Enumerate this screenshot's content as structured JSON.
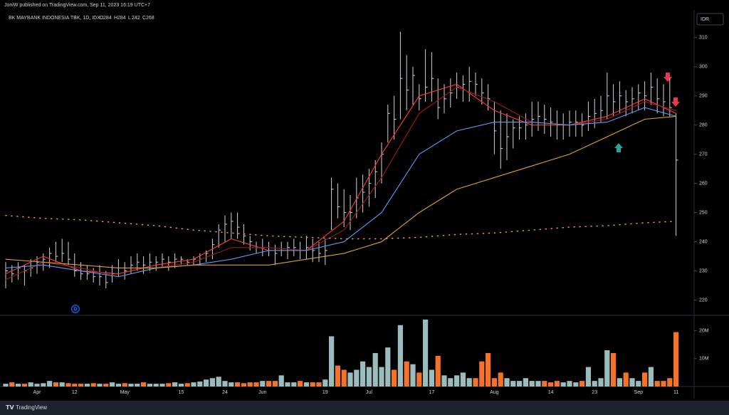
{
  "chart_data": {
    "type": "ohlc",
    "header": "JoniW published on TradingView.com, Sep 11, 2023 16:19 UTC+7",
    "title": "BK MAYBANK INDONESIA TBK, 1D, IDX",
    "ohlc_legend": [
      {
        "label": "O",
        "value": 284
      },
      {
        "label": "H",
        "value": 284
      },
      {
        "label": "L",
        "value": 242
      },
      {
        "label": "C",
        "value": 268
      }
    ],
    "currency": "IDR",
    "footer": "TradingView",
    "marker": "D",
    "categories": [
      null,
      null,
      null,
      null,
      null,
      "Apr",
      null,
      null,
      null,
      null,
      null,
      "12",
      null,
      null,
      null,
      null,
      null,
      null,
      null,
      "May",
      null,
      null,
      null,
      null,
      null,
      null,
      null,
      null,
      "15",
      null,
      null,
      null,
      null,
      null,
      null,
      "24",
      null,
      null,
      null,
      null,
      null,
      "Jun",
      null,
      null,
      null,
      null,
      null,
      null,
      null,
      null,
      null,
      "19",
      null,
      null,
      null,
      null,
      null,
      null,
      "Jul",
      null,
      null,
      null,
      null,
      null,
      null,
      null,
      null,
      null,
      "17",
      null,
      null,
      null,
      null,
      null,
      null,
      null,
      null,
      null,
      "Aug",
      null,
      null,
      null,
      null,
      null,
      null,
      null,
      null,
      "14",
      null,
      null,
      null,
      null,
      null,
      null,
      "23",
      null,
      null,
      null,
      null,
      null,
      null,
      "Sep",
      null,
      null,
      null,
      null,
      null,
      "11"
    ],
    "high": [
      233,
      232,
      233,
      232,
      234,
      235,
      236,
      238,
      240,
      241,
      240,
      236,
      233,
      232,
      231,
      232,
      230,
      232,
      234,
      233,
      235,
      236,
      235,
      236,
      235,
      236,
      235,
      236,
      235,
      234,
      235,
      236,
      237,
      241,
      246,
      249,
      250,
      250,
      246,
      242,
      240,
      241,
      240,
      239,
      240,
      240,
      241,
      240,
      242,
      241,
      240,
      241,
      262,
      260,
      258,
      256,
      262,
      263,
      265,
      268,
      274,
      287,
      290,
      312,
      304,
      300,
      294,
      306,
      305,
      296,
      294,
      296,
      298,
      297,
      300,
      298,
      296,
      294,
      288,
      285,
      284,
      282,
      283,
      284,
      288,
      288,
      287,
      286,
      285,
      284,
      285,
      285,
      284,
      288,
      289,
      290,
      298,
      294,
      295,
      292,
      293,
      294,
      295,
      298,
      296,
      294,
      296,
      284
    ],
    "low": [
      224,
      226,
      227,
      225,
      228,
      229,
      230,
      231,
      233,
      233,
      232,
      228,
      227,
      227,
      226,
      225,
      224,
      226,
      228,
      227,
      229,
      230,
      229,
      230,
      230,
      231,
      230,
      231,
      232,
      232,
      232,
      232,
      233,
      234,
      238,
      240,
      241,
      241,
      239,
      237,
      236,
      235,
      235,
      232,
      235,
      234,
      235,
      234,
      234,
      233,
      233,
      232,
      244,
      248,
      245,
      244,
      248,
      250,
      252,
      255,
      260,
      274,
      275,
      282,
      285,
      287,
      285,
      288,
      288,
      282,
      284,
      286,
      289,
      288,
      288,
      290,
      287,
      285,
      270,
      265,
      268,
      272,
      275,
      275,
      276,
      278,
      277,
      276,
      275,
      275,
      276,
      276,
      276,
      278,
      279,
      281,
      282,
      283,
      284,
      283,
      284,
      285,
      285,
      287,
      284,
      283,
      283,
      242
    ],
    "close": [
      230,
      229,
      231,
      230,
      231,
      233,
      234,
      236,
      235,
      236,
      234,
      230,
      229,
      229,
      228,
      228,
      226,
      229,
      231,
      230,
      232,
      233,
      232,
      233,
      233,
      234,
      233,
      234,
      234,
      233,
      234,
      234,
      236,
      239,
      244,
      246,
      247,
      245,
      242,
      240,
      238,
      238,
      237,
      236,
      237,
      238,
      238,
      237,
      238,
      237,
      236,
      237,
      258,
      252,
      250,
      250,
      255,
      257,
      260,
      264,
      270,
      284,
      282,
      296,
      292,
      297,
      289,
      293,
      296,
      286,
      289,
      291,
      293,
      294,
      295,
      294,
      291,
      289,
      278,
      272,
      276,
      279,
      279,
      280,
      282,
      283,
      282,
      281,
      280,
      280,
      281,
      281,
      280,
      283,
      284,
      285,
      290,
      288,
      290,
      288,
      289,
      291,
      290,
      293,
      289,
      288,
      286,
      268
    ],
    "bar_color": "#d1d4dc",
    "ylim": [
      215,
      318
    ],
    "yticks": [
      220,
      230,
      240,
      250,
      260,
      270,
      280,
      290,
      300,
      310
    ],
    "lines": [
      {
        "color": "#ff3b30",
        "x": [
          0,
          6,
          12,
          18,
          24,
          30,
          36,
          42,
          48,
          54,
          60,
          66,
          72,
          78,
          84,
          90,
          96,
          102,
          107
        ],
        "values": [
          229,
          235,
          230,
          229,
          232,
          234,
          241,
          237,
          237,
          247,
          270,
          290,
          294,
          285,
          280,
          280,
          283,
          289,
          284
        ]
      },
      {
        "color": "#9c1c1c",
        "x": [
          0,
          6,
          12,
          18,
          24,
          30,
          36,
          42,
          48,
          54,
          60,
          66,
          72,
          78,
          84,
          90,
          96,
          102,
          107
        ],
        "values": [
          227,
          233,
          231,
          228,
          231,
          233,
          238,
          238,
          237,
          244,
          262,
          284,
          293,
          288,
          281,
          280,
          282,
          288,
          285
        ]
      },
      {
        "color": "#5b9cf6",
        "x": [
          0,
          6,
          12,
          18,
          24,
          30,
          36,
          42,
          48,
          54,
          60,
          66,
          72,
          78,
          84,
          90,
          96,
          102,
          107
        ],
        "values": [
          231,
          232,
          230,
          228,
          231,
          232,
          234,
          237,
          237,
          240,
          250,
          270,
          278,
          281,
          281,
          280,
          281,
          286,
          283
        ]
      },
      {
        "color": "#e0a030",
        "x": [
          0,
          6,
          12,
          18,
          24,
          30,
          36,
          42,
          48,
          54,
          60,
          66,
          72,
          78,
          84,
          90,
          96,
          102,
          107
        ],
        "values": [
          234,
          233,
          232,
          231,
          231,
          232,
          232,
          232,
          234,
          236,
          240,
          250,
          258,
          262,
          266,
          270,
          276,
          282,
          283
        ]
      },
      {
        "color": "#f5a623",
        "dotted": true,
        "x": [
          0,
          6,
          12,
          18,
          24,
          30,
          36,
          42,
          48,
          54,
          60,
          66,
          72,
          78,
          84,
          90,
          96,
          102,
          107
        ],
        "values": [
          249,
          248,
          247.5,
          246.5,
          245.5,
          244,
          243,
          242,
          241.5,
          241,
          241,
          241.5,
          242.5,
          243,
          244,
          245,
          245.5,
          246.5,
          247
        ]
      }
    ],
    "volume": {
      "values": [
        1,
        1.5,
        1,
        1,
        1.5,
        1,
        1.2,
        2,
        1.5,
        1.5,
        1.2,
        1,
        1,
        1,
        1.2,
        1,
        1,
        1.5,
        1,
        1.2,
        1,
        1,
        1.5,
        1,
        1,
        1,
        1.2,
        1.5,
        1,
        1.2,
        1.5,
        1.8,
        2.5,
        3,
        3.5,
        2,
        1.5,
        1.5,
        1.2,
        1.5,
        1.5,
        2,
        2,
        2,
        4,
        1.5,
        1.5,
        2,
        1.5,
        1.5,
        1.5,
        2.5,
        18,
        7.5,
        6,
        5,
        6,
        9,
        7,
        12,
        7,
        14,
        6,
        22,
        9,
        8,
        5,
        24,
        6,
        11,
        4,
        3,
        4,
        5,
        3,
        3,
        9,
        12,
        3,
        5,
        3,
        2,
        2,
        3,
        2,
        2,
        2,
        1.5,
        2,
        1.5,
        2,
        1.5,
        2,
        7,
        2,
        3,
        13,
        12,
        3,
        5,
        3,
        2,
        5,
        7,
        2,
        2,
        3,
        19.5
      ],
      "up_color": "#9bbcbd",
      "down_color": "#f57328",
      "ylim": [
        0,
        25
      ],
      "yticks": [
        {
          "value": 10,
          "label": "10M"
        },
        {
          "value": 20,
          "label": "20M"
        }
      ]
    }
  }
}
